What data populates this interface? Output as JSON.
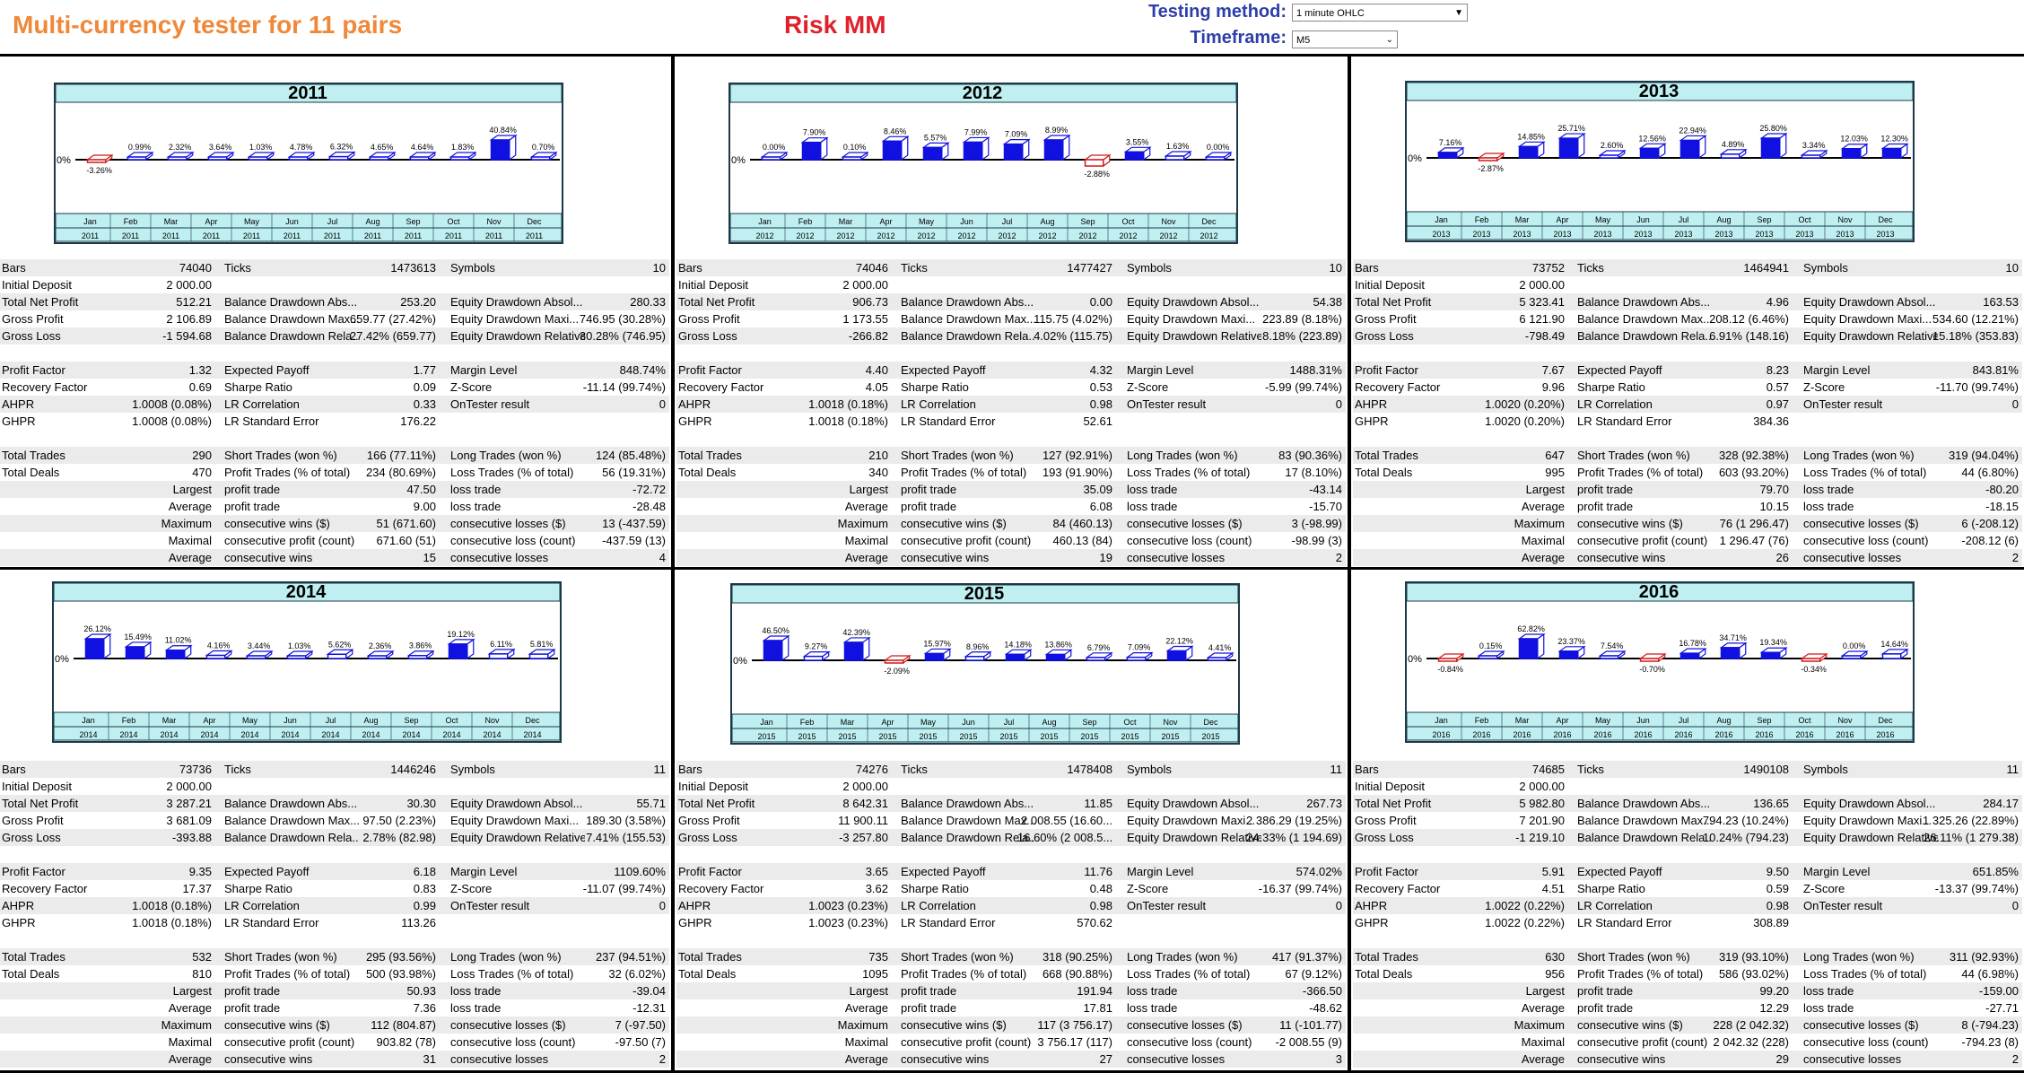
{
  "header": {
    "title": "Multi-currency tester for 11 pairs",
    "risk_label": "Risk  MM",
    "testing_method_label": "Testing method:",
    "testing_method_value": "1 minute OHLC",
    "timeframe_label": "Timeframe:",
    "timeframe_value": "M5"
  },
  "months": [
    "Jan",
    "Feb",
    "Mar",
    "Apr",
    "May",
    "Jun",
    "Jul",
    "Aug",
    "Sep",
    "Oct",
    "Nov",
    "Dec"
  ],
  "bar_color": "#1010e0",
  "negative_color": "#d01818",
  "chart_header_color": "#bfeff0",
  "chart_data": [
    {
      "type": "bar",
      "title": "2011",
      "categories": [
        "Jan",
        "Feb",
        "Mar",
        "Apr",
        "May",
        "Jun",
        "Jul",
        "Aug",
        "Sep",
        "Oct",
        "Nov",
        "Dec"
      ],
      "values": [
        -3.26,
        0.99,
        2.32,
        3.64,
        1.03,
        4.78,
        6.32,
        4.65,
        4.64,
        1.83,
        40.84,
        0.7
      ],
      "value_labels": [
        "-3.26%",
        "0.99%",
        "2.32%",
        "3.64%",
        "1.03%",
        "4.78%",
        "6.32%",
        "4.65%",
        "4.64%",
        "1.83%",
        "40.84%",
        "0.70%"
      ],
      "ylabel_zero": "0%"
    },
    {
      "type": "bar",
      "title": "2012",
      "categories": [
        "Jan",
        "Feb",
        "Mar",
        "Apr",
        "May",
        "Jun",
        "Jul",
        "Aug",
        "Sep",
        "Oct",
        "Nov",
        "Dec"
      ],
      "values": [
        0.0,
        7.9,
        0.1,
        8.46,
        5.57,
        7.99,
        7.09,
        8.99,
        -2.88,
        3.55,
        1.63,
        0.0
      ],
      "value_labels": [
        "0.00%",
        "7.90%",
        "0.10%",
        "8.46%",
        "5.57%",
        "7.99%",
        "7.09%",
        "8.99%",
        "-2.88%",
        "3.55%",
        "1.63%",
        "0.00%"
      ],
      "ylabel_zero": "0%"
    },
    {
      "type": "bar",
      "title": "2013",
      "categories": [
        "Jan",
        "Feb",
        "Mar",
        "Apr",
        "May",
        "Jun",
        "Jul",
        "Aug",
        "Sep",
        "Oct",
        "Nov",
        "Dec"
      ],
      "values": [
        7.16,
        -2.87,
        14.85,
        25.71,
        2.6,
        12.56,
        22.94,
        4.89,
        25.8,
        3.34,
        12.03,
        12.3
      ],
      "value_labels": [
        "7.16%",
        "-2.87%",
        "14.85%",
        "25.71%",
        "2.60%",
        "12.56%",
        "22.94%",
        "4.89%",
        "25.80%",
        "3.34%",
        "12.03%",
        "12.30%"
      ],
      "ylabel_zero": "0%"
    },
    {
      "type": "bar",
      "title": "2014",
      "categories": [
        "Jan",
        "Feb",
        "Mar",
        "Apr",
        "May",
        "Jun",
        "Jul",
        "Aug",
        "Sep",
        "Oct",
        "Nov",
        "Dec"
      ],
      "values": [
        26.12,
        15.49,
        11.02,
        4.16,
        3.44,
        1.03,
        5.62,
        2.36,
        3.86,
        19.12,
        6.11,
        5.81
      ],
      "value_labels": [
        "26.12%",
        "15.49%",
        "11.02%",
        "4.16%",
        "3.44%",
        "1.03%",
        "5.62%",
        "2.36%",
        "3.86%",
        "19.12%",
        "6.11%",
        "5.81%"
      ],
      "ylabel_zero": "0%"
    },
    {
      "type": "bar",
      "title": "2015",
      "categories": [
        "Jan",
        "Feb",
        "Mar",
        "Apr",
        "May",
        "Jun",
        "Jul",
        "Aug",
        "Sep",
        "Oct",
        "Nov",
        "Dec"
      ],
      "values": [
        46.5,
        9.27,
        42.39,
        -2.09,
        15.97,
        8.96,
        14.18,
        13.86,
        6.79,
        7.09,
        22.12,
        4.41
      ],
      "value_labels": [
        "46.50%",
        "9.27%",
        "42.39%",
        "-2.09%",
        "15.97%",
        "8.96%",
        "14.18%",
        "13.86%",
        "6.79%",
        "7.09%",
        "22.12%",
        "4.41%"
      ],
      "ylabel_zero": "0%"
    },
    {
      "type": "bar",
      "title": "2016",
      "categories": [
        "Jan",
        "Feb",
        "Mar",
        "Apr",
        "May",
        "Jun",
        "Jul",
        "Aug",
        "Sep",
        "Oct",
        "Nov",
        "Dec"
      ],
      "values": [
        -0.84,
        0.15,
        62.82,
        23.37,
        7.54,
        -0.7,
        16.78,
        34.71,
        19.34,
        -0.34,
        0.0,
        14.64
      ],
      "value_labels": [
        "-0.84%",
        "0.15%",
        "62.82%",
        "23.37%",
        "7.54%",
        "-0.70%",
        "16.78%",
        "34.71%",
        "19.34%",
        "-0.34%",
        "0.00%",
        "14.64%"
      ],
      "ylabel_zero": "0%"
    }
  ],
  "panels": [
    {
      "year": "2011",
      "stats": {
        "bars": "74040",
        "ticks": "1473613",
        "symbols": "10",
        "initial_deposit": "2 000.00",
        "total_net_profit": "512.21",
        "bal_dd_abs": "253.20",
        "eq_dd_abs": "280.33",
        "gross_profit": "2 106.89",
        "bal_dd_max": "659.77 (27.42%)",
        "eq_dd_max": "746.95 (30.28%)",
        "gross_loss": "-1 594.68",
        "bal_dd_rel": "27.42% (659.77)",
        "eq_dd_rel": "30.28% (746.95)",
        "profit_factor": "1.32",
        "expected_payoff": "1.77",
        "margin_level": "848.74%",
        "recovery_factor": "0.69",
        "sharpe_ratio": "0.09",
        "z_score": "-11.14 (99.74%)",
        "ahpr": "1.0008 (0.08%)",
        "lr_correlation": "0.33",
        "ontester": "0",
        "ghpr": "1.0008 (0.08%)",
        "lr_std_error": "176.22",
        "total_trades": "290",
        "short_trades": "166 (77.11%)",
        "long_trades": "124 (85.48%)",
        "total_deals": "470",
        "profit_trades": "234 (80.69%)",
        "loss_trades": "56 (19.31%)",
        "largest_profit": "47.50",
        "largest_loss": "-72.72",
        "average_profit": "9.00",
        "average_loss": "-28.48",
        "max_cons_wins": "51 (671.60)",
        "max_cons_losses": "13 (-437.59)",
        "maximal_cons_profit": "671.60 (51)",
        "maximal_cons_loss": "-437.59 (13)",
        "avg_cons_wins": "15",
        "avg_cons_losses": "4"
      }
    },
    {
      "year": "2012",
      "stats": {
        "bars": "74046",
        "ticks": "1477427",
        "symbols": "10",
        "initial_deposit": "2 000.00",
        "total_net_profit": "906.73",
        "bal_dd_abs": "0.00",
        "eq_dd_abs": "54.38",
        "gross_profit": "1 173.55",
        "bal_dd_max": "115.75 (4.02%)",
        "eq_dd_max": "223.89 (8.18%)",
        "gross_loss": "-266.82",
        "bal_dd_rel": "4.02% (115.75)",
        "eq_dd_rel": "8.18% (223.89)",
        "profit_factor": "4.40",
        "expected_payoff": "4.32",
        "margin_level": "1488.31%",
        "recovery_factor": "4.05",
        "sharpe_ratio": "0.53",
        "z_score": "-5.99 (99.74%)",
        "ahpr": "1.0018 (0.18%)",
        "lr_correlation": "0.98",
        "ontester": "0",
        "ghpr": "1.0018 (0.18%)",
        "lr_std_error": "52.61",
        "total_trades": "210",
        "short_trades": "127 (92.91%)",
        "long_trades": "83 (90.36%)",
        "total_deals": "340",
        "profit_trades": "193 (91.90%)",
        "loss_trades": "17 (8.10%)",
        "largest_profit": "35.09",
        "largest_loss": "-43.14",
        "average_profit": "6.08",
        "average_loss": "-15.70",
        "max_cons_wins": "84 (460.13)",
        "max_cons_losses": "3 (-98.99)",
        "maximal_cons_profit": "460.13 (84)",
        "maximal_cons_loss": "-98.99 (3)",
        "avg_cons_wins": "19",
        "avg_cons_losses": "2"
      }
    },
    {
      "year": "2013",
      "stats": {
        "bars": "73752",
        "ticks": "1464941",
        "symbols": "10",
        "initial_deposit": "2 000.00",
        "total_net_profit": "5 323.41",
        "bal_dd_abs": "4.96",
        "eq_dd_abs": "163.53",
        "gross_profit": "6 121.90",
        "bal_dd_max": "208.12 (6.46%)",
        "eq_dd_max": "534.60 (12.21%)",
        "gross_loss": "-798.49",
        "bal_dd_rel": "6.91% (148.16)",
        "eq_dd_rel": "15.18% (353.83)",
        "profit_factor": "7.67",
        "expected_payoff": "8.23",
        "margin_level": "843.81%",
        "recovery_factor": "9.96",
        "sharpe_ratio": "0.57",
        "z_score": "-11.70 (99.74%)",
        "ahpr": "1.0020 (0.20%)",
        "lr_correlation": "0.97",
        "ontester": "0",
        "ghpr": "1.0020 (0.20%)",
        "lr_std_error": "384.36",
        "total_trades": "647",
        "short_trades": "328 (92.38%)",
        "long_trades": "319 (94.04%)",
        "total_deals": "995",
        "profit_trades": "603 (93.20%)",
        "loss_trades": "44 (6.80%)",
        "largest_profit": "79.70",
        "largest_loss": "-80.20",
        "average_profit": "10.15",
        "average_loss": "-18.15",
        "max_cons_wins": "76 (1 296.47)",
        "max_cons_losses": "6 (-208.12)",
        "maximal_cons_profit": "1 296.47 (76)",
        "maximal_cons_loss": "-208.12 (6)",
        "avg_cons_wins": "26",
        "avg_cons_losses": "2"
      }
    },
    {
      "year": "2014",
      "stats": {
        "bars": "73736",
        "ticks": "1446246",
        "symbols": "11",
        "initial_deposit": "2 000.00",
        "total_net_profit": "3 287.21",
        "bal_dd_abs": "30.30",
        "eq_dd_abs": "55.71",
        "gross_profit": "3 681.09",
        "bal_dd_max": "97.50 (2.23%)",
        "eq_dd_max": "189.30 (3.58%)",
        "gross_loss": "-393.88",
        "bal_dd_rel": "2.78% (82.98)",
        "eq_dd_rel": "7.41% (155.53)",
        "profit_factor": "9.35",
        "expected_payoff": "6.18",
        "margin_level": "1109.60%",
        "recovery_factor": "17.37",
        "sharpe_ratio": "0.83",
        "z_score": "-11.07 (99.74%)",
        "ahpr": "1.0018 (0.18%)",
        "lr_correlation": "0.99",
        "ontester": "0",
        "ghpr": "1.0018 (0.18%)",
        "lr_std_error": "113.26",
        "total_trades": "532",
        "short_trades": "295 (93.56%)",
        "long_trades": "237 (94.51%)",
        "total_deals": "810",
        "profit_trades": "500 (93.98%)",
        "loss_trades": "32 (6.02%)",
        "largest_profit": "50.93",
        "largest_loss": "-39.04",
        "average_profit": "7.36",
        "average_loss": "-12.31",
        "max_cons_wins": "112 (804.87)",
        "max_cons_losses": "7 (-97.50)",
        "maximal_cons_profit": "903.82 (78)",
        "maximal_cons_loss": "-97.50 (7)",
        "avg_cons_wins": "31",
        "avg_cons_losses": "2"
      }
    },
    {
      "year": "2015",
      "stats": {
        "bars": "74276",
        "ticks": "1478408",
        "symbols": "11",
        "initial_deposit": "2 000.00",
        "total_net_profit": "8 642.31",
        "bal_dd_abs": "11.85",
        "eq_dd_abs": "267.73",
        "gross_profit": "11 900.11",
        "bal_dd_max": "2 008.55 (16.60...",
        "eq_dd_max": "2 386.29 (19.25%)",
        "gross_loss": "-3 257.80",
        "bal_dd_rel": "16.60% (2 008.5...",
        "eq_dd_rel": "24.33% (1 194.69)",
        "profit_factor": "3.65",
        "expected_payoff": "11.76",
        "margin_level": "574.02%",
        "recovery_factor": "3.62",
        "sharpe_ratio": "0.48",
        "z_score": "-16.37 (99.74%)",
        "ahpr": "1.0023 (0.23%)",
        "lr_correlation": "0.98",
        "ontester": "0",
        "ghpr": "1.0023 (0.23%)",
        "lr_std_error": "570.62",
        "total_trades": "735",
        "short_trades": "318 (90.25%)",
        "long_trades": "417 (91.37%)",
        "total_deals": "1095",
        "profit_trades": "668 (90.88%)",
        "loss_trades": "67 (9.12%)",
        "largest_profit": "191.94",
        "largest_loss": "-366.50",
        "average_profit": "17.81",
        "average_loss": "-48.62",
        "max_cons_wins": "117 (3 756.17)",
        "max_cons_losses": "11 (-101.77)",
        "maximal_cons_profit": "3 756.17 (117)",
        "maximal_cons_loss": "-2 008.55 (9)",
        "avg_cons_wins": "27",
        "avg_cons_losses": "3"
      }
    },
    {
      "year": "2016",
      "stats": {
        "bars": "74685",
        "ticks": "1490108",
        "symbols": "11",
        "initial_deposit": "2 000.00",
        "total_net_profit": "5 982.80",
        "bal_dd_abs": "136.65",
        "eq_dd_abs": "284.17",
        "gross_profit": "7 201.90",
        "bal_dd_max": "794.23 (10.24%)",
        "eq_dd_max": "1 325.26 (22.89%)",
        "gross_loss": "-1 219.10",
        "bal_dd_rel": "10.24% (794.23)",
        "eq_dd_rel": "26.11% (1 279.38)",
        "profit_factor": "5.91",
        "expected_payoff": "9.50",
        "margin_level": "651.85%",
        "recovery_factor": "4.51",
        "sharpe_ratio": "0.59",
        "z_score": "-13.37 (99.74%)",
        "ahpr": "1.0022 (0.22%)",
        "lr_correlation": "0.98",
        "ontester": "0",
        "ghpr": "1.0022 (0.22%)",
        "lr_std_error": "308.89",
        "total_trades": "630",
        "short_trades": "319 (93.10%)",
        "long_trades": "311 (92.93%)",
        "total_deals": "956",
        "profit_trades": "586 (93.02%)",
        "loss_trades": "44 (6.98%)",
        "largest_profit": "99.20",
        "largest_loss": "-159.00",
        "average_profit": "12.29",
        "average_loss": "-27.71",
        "max_cons_wins": "228 (2 042.32)",
        "max_cons_losses": "8 (-794.23)",
        "maximal_cons_profit": "2 042.32 (228)",
        "maximal_cons_loss": "-794.23 (8)",
        "avg_cons_wins": "29",
        "avg_cons_losses": "2"
      }
    }
  ],
  "labels": {
    "bars": "Bars",
    "ticks": "Ticks",
    "symbols": "Symbols",
    "initial_deposit": "Initial Deposit",
    "total_net_profit": "Total Net Profit",
    "bal_dd_abs": "Balance Drawdown Abs...",
    "eq_dd_abs": "Equity Drawdown Absol...",
    "gross_profit": "Gross Profit",
    "bal_dd_max": "Balance Drawdown Max...",
    "eq_dd_max": "Equity Drawdown Maxi...",
    "gross_loss": "Gross Loss",
    "bal_dd_rel": "Balance Drawdown Rela...",
    "eq_dd_rel": "Equity Drawdown Relative",
    "profit_factor": "Profit Factor",
    "expected_payoff": "Expected Payoff",
    "margin_level": "Margin Level",
    "recovery_factor": "Recovery Factor",
    "sharpe_ratio": "Sharpe Ratio",
    "z_score": "Z-Score",
    "ahpr": "AHPR",
    "lr_correlation": "LR Correlation",
    "ontester": "OnTester result",
    "ghpr": "GHPR",
    "lr_std_error": "LR Standard Error",
    "total_trades": "Total Trades",
    "short_trades": "Short Trades (won %)",
    "long_trades": "Long Trades (won %)",
    "total_deals": "Total Deals",
    "profit_trades": "Profit Trades (% of total)",
    "loss_trades": "Loss Trades (% of total)",
    "largest": "Largest",
    "average": "Average",
    "maximum": "Maximum",
    "maximal": "Maximal",
    "profit_trade": "profit trade",
    "loss_trade": "loss trade",
    "cons_wins_money": "consecutive wins ($)",
    "cons_losses_money": "consecutive losses ($)",
    "cons_profit_count": "consecutive profit (count)",
    "cons_loss_count": "consecutive loss (count)",
    "cons_wins": "consecutive wins",
    "cons_losses": "consecutive losses"
  }
}
